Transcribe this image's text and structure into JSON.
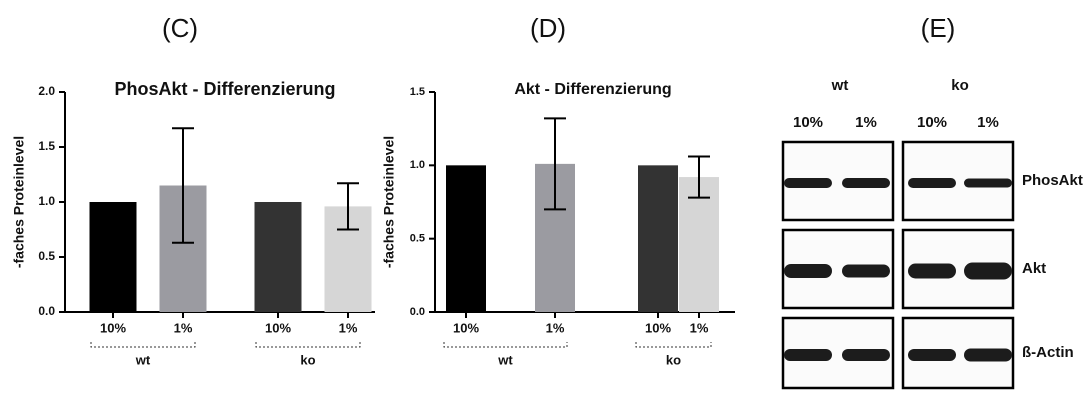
{
  "chart_data": [
    {
      "type": "bar",
      "panel_label": "(C)",
      "title": "PhosAkt - Differenzierung",
      "ylabel": "-faches Proteinlevel",
      "categories": [
        "10%",
        "1%",
        "10%",
        "1%"
      ],
      "groups": [
        "wt",
        "ko"
      ],
      "values": [
        1.0,
        1.15,
        1.0,
        0.96
      ],
      "errors": [
        null,
        0.52,
        null,
        0.21
      ],
      "colors": [
        "#000000",
        "#9b9ba1",
        "#333333",
        "#d6d6d6"
      ],
      "ylim": [
        0,
        2
      ],
      "yticks": [
        {
          "value": 0,
          "label": "0.0"
        },
        0.5,
        {
          "value": 1,
          "label": "1.0"
        },
        1.5,
        {
          "value": 2,
          "label": "2.0"
        }
      ]
    },
    {
      "type": "bar",
      "panel_label": "(D)",
      "title": "Akt - Differenzierung",
      "ylabel": "-faches Proteinlevel",
      "categories": [
        "10%",
        "1%",
        "10%",
        "1%"
      ],
      "groups": [
        "wt",
        "ko"
      ],
      "values": [
        1.0,
        1.01,
        1.0,
        0.92
      ],
      "errors": [
        null,
        0.31,
        null,
        0.14
      ],
      "colors": [
        "#000000",
        "#9b9ba1",
        "#333333",
        "#d6d6d6"
      ],
      "ylim": [
        0,
        1.5
      ],
      "yticks": [
        {
          "value": 0,
          "label": "0.0"
        },
        0.5,
        {
          "value": 1,
          "label": "1.0"
        },
        1.5
      ]
    }
  ],
  "blot": {
    "panel_label": "(E)",
    "groups": [
      "wt",
      "ko"
    ],
    "lanes": [
      "10%",
      "1%",
      "10%",
      "1%"
    ],
    "rows": [
      "PhosAkt",
      "Akt",
      "ß-Actin"
    ]
  }
}
